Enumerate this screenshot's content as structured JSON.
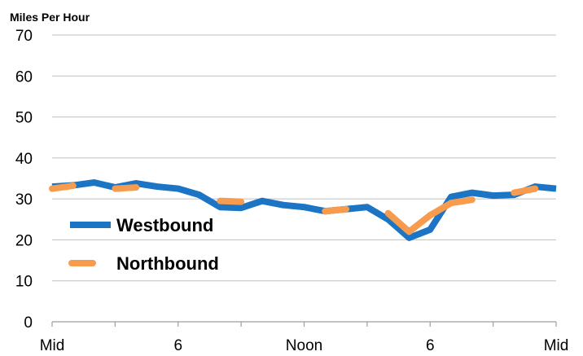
{
  "chart_data": {
    "type": "line",
    "title": "",
    "xlabel": "",
    "ylabel": "Miles Per Hour",
    "ylim": [
      0,
      70
    ],
    "yticks": [
      0,
      10,
      20,
      30,
      40,
      50,
      60,
      70
    ],
    "grid": true,
    "legend_position": "center-left",
    "x_tick_labels": [
      "Mid",
      "6",
      "Noon",
      "6",
      "Mid"
    ],
    "x_tick_hours": [
      0,
      6,
      12,
      18,
      24
    ],
    "hours": [
      0,
      1,
      2,
      3,
      4,
      5,
      6,
      7,
      8,
      9,
      10,
      11,
      12,
      13,
      14,
      15,
      16,
      17,
      18,
      19,
      20,
      21,
      22,
      23,
      24
    ],
    "series": [
      {
        "name": "Westbound",
        "color": "#1B75C4",
        "style": "solid",
        "values": [
          33,
          33.3,
          34,
          32.8,
          33.8,
          33,
          32.5,
          31,
          28,
          27.8,
          29.5,
          28.5,
          28,
          27,
          27.5,
          28,
          25,
          20.5,
          22.5,
          30.5,
          31.5,
          30.8,
          31,
          33,
          32.5
        ]
      },
      {
        "name": "Northbound",
        "color": "#F79C4F",
        "style": "dashed",
        "values": [
          32.5,
          33.2,
          null,
          32.5,
          32.8,
          null,
          32.5,
          null,
          29.5,
          29.3,
          null,
          27.5,
          null,
          27,
          27.5,
          null,
          26.5,
          22,
          26,
          29,
          29.8,
          null,
          31.5,
          32.5,
          null
        ]
      }
    ]
  }
}
